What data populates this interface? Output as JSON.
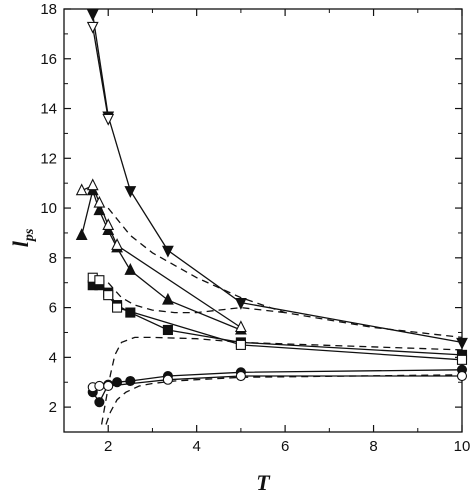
{
  "chart_data": {
    "type": "line",
    "title": "",
    "xlabel": "T",
    "ylabel": "l",
    "ylabel_subscript": "ps",
    "xlim": [
      1,
      10
    ],
    "ylim": [
      1,
      18
    ],
    "x_ticks": [
      2,
      4,
      6,
      8,
      10
    ],
    "y_ticks": [
      2,
      4,
      6,
      8,
      10,
      12,
      14,
      16,
      18
    ],
    "x_tick_labels": [
      "2",
      "4",
      "6",
      "8",
      "10"
    ],
    "y_tick_labels": [
      "2",
      "4",
      "6",
      "8",
      "10",
      "12",
      "14",
      "16",
      "18"
    ],
    "grid": false,
    "legend": "none",
    "series": [
      {
        "marker": "triangle-down",
        "fill": "filled",
        "line": "solid",
        "x": [
          1.65,
          2.0,
          2.5,
          3.35,
          5.0,
          10.0
        ],
        "y": [
          17.8,
          13.7,
          10.7,
          8.3,
          6.2,
          4.6
        ]
      },
      {
        "marker": "triangle-down",
        "fill": "open",
        "line": "solid",
        "x": [
          1.65,
          2.0
        ],
        "y": [
          17.3,
          13.6
        ]
      },
      {
        "marker": "triangle-up",
        "fill": "filled",
        "line": "solid",
        "x": [
          1.4,
          1.65,
          1.8,
          2.0,
          2.2,
          2.5,
          3.35,
          5.0
        ],
        "y": [
          8.9,
          10.7,
          9.9,
          9.1,
          8.4,
          7.5,
          6.3,
          5.1
        ]
      },
      {
        "marker": "triangle-up",
        "fill": "open",
        "line": "solid",
        "x": [
          1.4,
          1.65,
          1.8,
          2.0,
          2.2,
          5.0
        ],
        "y": [
          10.7,
          10.9,
          10.2,
          9.3,
          8.5,
          5.2
        ]
      },
      {
        "marker": "square",
        "fill": "filled",
        "line": "solid",
        "x": [
          1.65,
          1.8,
          2.0,
          2.2,
          2.5,
          3.35,
          5.0,
          10.0
        ],
        "y": [
          6.9,
          6.9,
          6.6,
          6.1,
          5.8,
          5.1,
          4.6,
          4.1
        ]
      },
      {
        "marker": "square",
        "fill": "open",
        "line": "solid",
        "x": [
          1.65,
          1.8,
          2.0,
          2.2,
          5.0,
          10.0
        ],
        "y": [
          7.2,
          7.1,
          6.5,
          6.0,
          4.5,
          3.9
        ]
      },
      {
        "marker": "circle",
        "fill": "filled",
        "line": "solid",
        "x": [
          1.65,
          1.8,
          2.0,
          2.2,
          2.5,
          3.35,
          5.0,
          10.0
        ],
        "y": [
          2.6,
          2.2,
          2.9,
          3.0,
          3.05,
          3.25,
          3.4,
          3.5
        ]
      },
      {
        "marker": "circle",
        "fill": "open",
        "line": "solid",
        "x": [
          1.65,
          1.8,
          2.0,
          3.35,
          5.0,
          10.0
        ],
        "y": [
          2.8,
          2.85,
          2.85,
          3.1,
          3.25,
          3.25
        ]
      },
      {
        "marker": "none",
        "line": "dashed",
        "x": [
          2.0,
          2.5,
          3.0,
          3.5,
          4.0,
          5.0,
          6.0,
          8.0,
          10.0
        ],
        "y": [
          10.0,
          8.9,
          8.2,
          7.7,
          7.2,
          6.4,
          5.8,
          5.2,
          4.8
        ]
      },
      {
        "marker": "none",
        "line": "dashed",
        "x": [
          2.0,
          2.3,
          2.6,
          3.0,
          3.5,
          4.0,
          5.0,
          6.0
        ],
        "y": [
          7.0,
          6.4,
          6.1,
          5.9,
          5.8,
          5.8,
          6.0,
          5.8
        ]
      },
      {
        "marker": "none",
        "line": "dashed",
        "x": [
          1.85,
          1.95,
          2.05,
          2.15,
          2.3,
          2.6,
          3.0,
          4.0,
          5.0,
          10.0
        ],
        "y": [
          1.3,
          2.3,
          3.3,
          4.1,
          4.6,
          4.8,
          4.8,
          4.75,
          4.6,
          4.3
        ]
      },
      {
        "marker": "none",
        "line": "dashed",
        "x": [
          1.95,
          2.05,
          2.2,
          2.4,
          2.7,
          3.0,
          3.5,
          4.0,
          5.0,
          10.0
        ],
        "y": [
          1.3,
          1.8,
          2.3,
          2.6,
          2.85,
          2.95,
          3.05,
          3.1,
          3.2,
          3.3
        ]
      }
    ]
  }
}
